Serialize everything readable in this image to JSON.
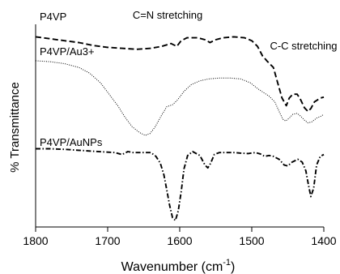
{
  "chart_data": {
    "type": "line",
    "xlabel": "Wavenumber (cm",
    "xlabel_sup": "-1",
    "xlabel_close": ")",
    "ylabel": "% Transmittance",
    "xlim": [
      1800,
      1400
    ],
    "x_reversed": true,
    "y_ticks": false,
    "grid": false,
    "x_ticks": [
      {
        "value": 1800,
        "label": "1800"
      },
      {
        "value": 1700,
        "label": "1700"
      },
      {
        "value": 1600,
        "label": "1600"
      },
      {
        "value": 1500,
        "label": "1500"
      },
      {
        "value": 1400,
        "label": "1400"
      }
    ],
    "annotations": [
      {
        "text": "C=N stretching",
        "x": 1640
      },
      {
        "text": "C-C stretching",
        "x": 1415
      }
    ],
    "series": [
      {
        "name": "P4VP",
        "style": "dashed",
        "points": [
          [
            1800,
            0.04
          ],
          [
            1780,
            0.05
          ],
          [
            1760,
            0.06
          ],
          [
            1740,
            0.07
          ],
          [
            1720,
            0.085
          ],
          [
            1700,
            0.095
          ],
          [
            1680,
            0.1
          ],
          [
            1660,
            0.105
          ],
          [
            1640,
            0.1
          ],
          [
            1625,
            0.09
          ],
          [
            1612,
            0.075
          ],
          [
            1604,
            0.09
          ],
          [
            1598,
            0.06
          ],
          [
            1590,
            0.045
          ],
          [
            1575,
            0.045
          ],
          [
            1565,
            0.055
          ],
          [
            1558,
            0.07
          ],
          [
            1550,
            0.055
          ],
          [
            1540,
            0.045
          ],
          [
            1525,
            0.04
          ],
          [
            1510,
            0.045
          ],
          [
            1500,
            0.06
          ],
          [
            1492,
            0.09
          ],
          [
            1485,
            0.14
          ],
          [
            1478,
            0.17
          ],
          [
            1470,
            0.2
          ],
          [
            1464,
            0.28
          ],
          [
            1458,
            0.36
          ],
          [
            1452,
            0.4
          ],
          [
            1448,
            0.36
          ],
          [
            1443,
            0.34
          ],
          [
            1437,
            0.34
          ],
          [
            1432,
            0.37
          ],
          [
            1427,
            0.41
          ],
          [
            1422,
            0.43
          ],
          [
            1418,
            0.415
          ],
          [
            1413,
            0.38
          ],
          [
            1405,
            0.36
          ],
          [
            1400,
            0.355
          ]
        ]
      },
      {
        "name": "P4VP/Au3+",
        "style": "dotted",
        "points": [
          [
            1800,
            0.165
          ],
          [
            1780,
            0.17
          ],
          [
            1760,
            0.18
          ],
          [
            1740,
            0.2
          ],
          [
            1725,
            0.23
          ],
          [
            1710,
            0.28
          ],
          [
            1698,
            0.34
          ],
          [
            1686,
            0.4
          ],
          [
            1676,
            0.46
          ],
          [
            1666,
            0.51
          ],
          [
            1656,
            0.54
          ],
          [
            1648,
            0.555
          ],
          [
            1641,
            0.545
          ],
          [
            1634,
            0.51
          ],
          [
            1626,
            0.455
          ],
          [
            1618,
            0.405
          ],
          [
            1610,
            0.395
          ],
          [
            1603,
            0.37
          ],
          [
            1594,
            0.325
          ],
          [
            1584,
            0.29
          ],
          [
            1572,
            0.27
          ],
          [
            1560,
            0.26
          ],
          [
            1545,
            0.255
          ],
          [
            1530,
            0.255
          ],
          [
            1515,
            0.26
          ],
          [
            1502,
            0.28
          ],
          [
            1492,
            0.31
          ],
          [
            1484,
            0.33
          ],
          [
            1476,
            0.35
          ],
          [
            1468,
            0.38
          ],
          [
            1462,
            0.43
          ],
          [
            1457,
            0.47
          ],
          [
            1453,
            0.48
          ],
          [
            1448,
            0.465
          ],
          [
            1443,
            0.445
          ],
          [
            1437,
            0.44
          ],
          [
            1432,
            0.455
          ],
          [
            1427,
            0.475
          ],
          [
            1422,
            0.49
          ],
          [
            1417,
            0.485
          ],
          [
            1410,
            0.465
          ],
          [
            1404,
            0.455
          ],
          [
            1400,
            0.445
          ]
        ]
      },
      {
        "name": "P4VP/AuNPs",
        "style": "dash-dot",
        "points": [
          [
            1800,
            0.625
          ],
          [
            1780,
            0.625
          ],
          [
            1760,
            0.628
          ],
          [
            1740,
            0.633
          ],
          [
            1720,
            0.638
          ],
          [
            1700,
            0.643
          ],
          [
            1690,
            0.645
          ],
          [
            1680,
            0.655
          ],
          [
            1672,
            0.64
          ],
          [
            1665,
            0.645
          ],
          [
            1650,
            0.645
          ],
          [
            1640,
            0.645
          ],
          [
            1633,
            0.665
          ],
          [
            1627,
            0.7
          ],
          [
            1622,
            0.76
          ],
          [
            1618,
            0.84
          ],
          [
            1614,
            0.92
          ],
          [
            1610,
            0.985
          ],
          [
            1606,
            1.0
          ],
          [
            1602,
            0.95
          ],
          [
            1598,
            0.85
          ],
          [
            1594,
            0.73
          ],
          [
            1589,
            0.66
          ],
          [
            1582,
            0.64
          ],
          [
            1572,
            0.66
          ],
          [
            1565,
            0.71
          ],
          [
            1561,
            0.725
          ],
          [
            1557,
            0.7
          ],
          [
            1552,
            0.655
          ],
          [
            1545,
            0.645
          ],
          [
            1535,
            0.645
          ],
          [
            1525,
            0.645
          ],
          [
            1515,
            0.648
          ],
          [
            1505,
            0.65
          ],
          [
            1495,
            0.645
          ],
          [
            1488,
            0.652
          ],
          [
            1482,
            0.665
          ],
          [
            1476,
            0.66
          ],
          [
            1470,
            0.665
          ],
          [
            1462,
            0.68
          ],
          [
            1455,
            0.71
          ],
          [
            1450,
            0.715
          ],
          [
            1444,
            0.695
          ],
          [
            1436,
            0.68
          ],
          [
            1430,
            0.695
          ],
          [
            1425,
            0.74
          ],
          [
            1421,
            0.82
          ],
          [
            1418,
            0.875
          ],
          [
            1414,
            0.83
          ],
          [
            1410,
            0.71
          ],
          [
            1405,
            0.665
          ],
          [
            1400,
            0.655
          ]
        ]
      }
    ]
  }
}
